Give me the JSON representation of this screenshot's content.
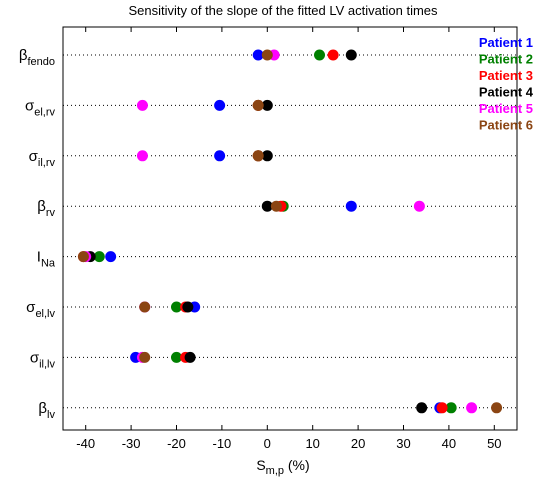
{
  "chart_data": {
    "type": "scatter",
    "title": "Sensitivity of the slope of the fitted LV activation times",
    "xlabel": {
      "main": "S",
      "sub": "m,p",
      "unit": " (%)"
    },
    "xlim": [
      -45,
      55
    ],
    "xticks": [
      -40,
      -30,
      -20,
      -10,
      0,
      10,
      20,
      30,
      40,
      50
    ],
    "grid": "dotted horizontal lines at each parameter",
    "legend_position": "top-right",
    "categories": [
      {
        "main": "β",
        "sub": "fendo"
      },
      {
        "main": "σ",
        "sub": "el,rv"
      },
      {
        "main": "σ",
        "sub": "il,rv"
      },
      {
        "main": "β",
        "sub": "rv"
      },
      {
        "main": "I",
        "sub": "Na"
      },
      {
        "main": "σ",
        "sub": "el,lv"
      },
      {
        "main": "σ",
        "sub": "il,lv"
      },
      {
        "main": "β",
        "sub": "lv"
      }
    ],
    "series": [
      {
        "name": "Patient 1",
        "color": "#0000ff",
        "values": [
          -2,
          -10.5,
          -10.5,
          18.5,
          -34.5,
          -16,
          -29,
          38
        ]
      },
      {
        "name": "Patient 2",
        "color": "#008000",
        "values": [
          11.5,
          -2,
          -2,
          3.5,
          -37,
          -20,
          -20,
          40.5
        ]
      },
      {
        "name": "Patient 3",
        "color": "#ff0000",
        "values": [
          14.5,
          -2,
          -2,
          3,
          -40.5,
          -18,
          -18,
          38.5
        ]
      },
      {
        "name": "Patient 4",
        "color": "#000000",
        "values": [
          18.5,
          0,
          0,
          0,
          -39,
          -17.5,
          -17,
          34
        ]
      },
      {
        "name": "Patient 5",
        "color": "#ff00ff",
        "values": [
          1.5,
          -27.5,
          -27.5,
          33.5,
          -40,
          -27,
          -27.5,
          45
        ]
      },
      {
        "name": "Patient 6",
        "color": "#8b4513",
        "values": [
          0,
          -2,
          -2,
          2,
          -40.5,
          -27,
          -27,
          50.5
        ]
      }
    ]
  }
}
